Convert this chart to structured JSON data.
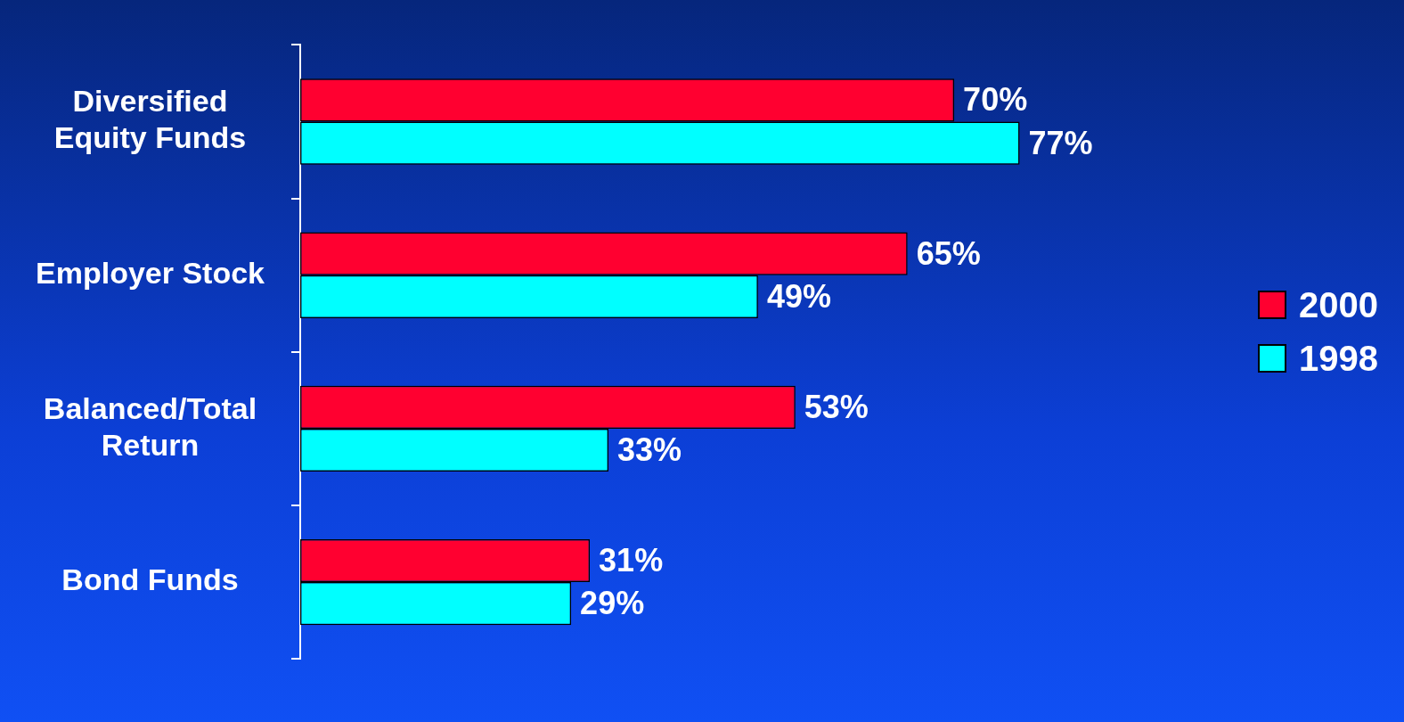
{
  "chart_data": {
    "type": "bar",
    "orientation": "horizontal",
    "categories": [
      "Diversified\nEquity Funds",
      "Employer Stock",
      "Balanced/Total\nReturn",
      "Bond Funds"
    ],
    "series": [
      {
        "name": "2000",
        "color": "#ff0030",
        "values": [
          70,
          65,
          53,
          31
        ],
        "value_labels": [
          "70%",
          "65%",
          "53%",
          "31%"
        ]
      },
      {
        "name": "1998",
        "color": "#00ffff",
        "values": [
          77,
          49,
          33,
          29
        ],
        "value_labels": [
          "77%",
          "49%",
          "33%",
          "29%"
        ]
      }
    ],
    "tick_labels": "y",
    "grid": false,
    "legend": "right"
  }
}
